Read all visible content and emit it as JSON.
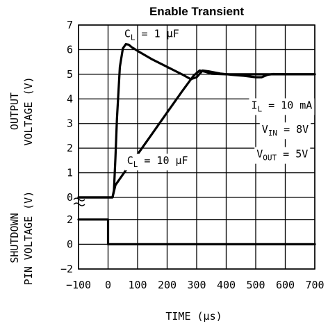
{
  "chart_data": {
    "type": "line",
    "title": "Enable Transient",
    "xlabel": "TIME (μs)",
    "xlim": [
      -100,
      700
    ],
    "x_ticks": [
      "-100",
      "0",
      "100",
      "200",
      "300",
      "400",
      "500",
      "600",
      "700"
    ],
    "grid": true,
    "panels": [
      {
        "name": "output",
        "ylabel_lines": [
          "OUTPUT",
          "VOLTAGE (V)"
        ],
        "ylim": [
          0,
          7
        ],
        "y_ticks": [
          "0",
          "1",
          "2",
          "3",
          "4",
          "5",
          "6",
          "7"
        ],
        "series": [
          {
            "name": "C_L = 1 μF",
            "x": [
              -100,
              15,
              20,
              25,
              30,
              40,
              50,
              60,
              70,
              80,
              100,
              150,
              200,
              250,
              280,
              300,
              320,
              340,
              380,
              420,
              460,
              500,
              520,
              540,
              560,
              600,
              650,
              700
            ],
            "y": [
              0,
              0,
              0.3,
              1.6,
              3.2,
              5.3,
              6.05,
              6.22,
              6.2,
              6.1,
              5.95,
              5.6,
              5.3,
              5.0,
              4.8,
              4.88,
              5.15,
              5.12,
              5.03,
              4.98,
              4.94,
              4.88,
              4.88,
              4.98,
              5.01,
              5.0,
              5.0,
              5.0
            ]
          },
          {
            "name": "C_L = 10 μF",
            "x": [
              -100,
              15,
              25,
              60,
              100,
              150,
              200,
              250,
              290,
              310,
              330,
              350,
              400,
              450,
              500,
              550,
              600,
              650,
              700
            ],
            "y": [
              0,
              0,
              0.5,
              1.1,
              1.75,
              2.6,
              3.45,
              4.3,
              4.95,
              5.15,
              5.1,
              5.02,
              5.0,
              5.0,
              5.0,
              5.0,
              5.0,
              5.0,
              5.0
            ]
          }
        ],
        "labels": {
          "cl1": {
            "pre": "C",
            "sub": "L",
            "post": " = 1 μF"
          },
          "cl10": {
            "pre": "C",
            "sub": "L",
            "post": " = 10 μF"
          },
          "il": {
            "pre": "I",
            "sub": "L",
            "post": " = 10 mA"
          },
          "vin": {
            "pre": "V",
            "sub": "IN",
            "post": " = 8V"
          },
          "vout": {
            "pre": "V",
            "sub": "OUT",
            "post": " = 5V"
          }
        }
      },
      {
        "name": "shutdown",
        "ylabel_lines": [
          "SHUTDOWN",
          "PIN VOLTAGE (V)"
        ],
        "ylim": [
          -2,
          3
        ],
        "y_ticks": [
          "-2",
          "0",
          "2"
        ],
        "series": [
          {
            "name": "Shutdown",
            "x": [
              -100,
              0,
              0,
              700
            ],
            "y": [
              2,
              2,
              0,
              0
            ]
          }
        ]
      }
    ]
  }
}
